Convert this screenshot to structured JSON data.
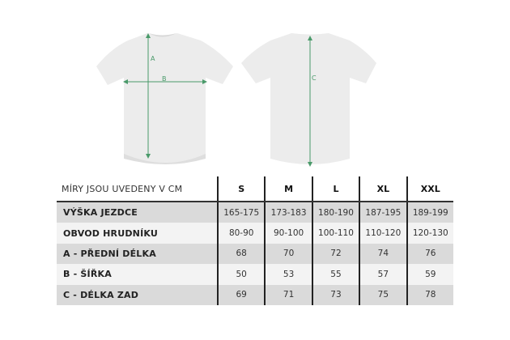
{
  "diagram": {
    "labels": {
      "a": "A",
      "b": "B",
      "c": "C"
    },
    "shirt_color": "#ececec",
    "measure_color": "#4a9a6a"
  },
  "table": {
    "caption": "MÍRY JSOU UVEDENY V CM",
    "sizes": [
      "S",
      "M",
      "L",
      "XL",
      "XXL"
    ],
    "rows": [
      {
        "label": "VÝŠKA JEZDCE",
        "values": [
          "165-175",
          "173-183",
          "180-190",
          "187-195",
          "189-199"
        ]
      },
      {
        "label": "OBVOD HRUDNÍKU",
        "values": [
          "80-90",
          "90-100",
          "100-110",
          "110-120",
          "120-130"
        ]
      },
      {
        "label": "A - PŘEDNÍ DÉLKA",
        "values": [
          "68",
          "70",
          "72",
          "74",
          "76"
        ]
      },
      {
        "label": "B - ŠÍŘKA",
        "values": [
          "50",
          "53",
          "55",
          "57",
          "59"
        ]
      },
      {
        "label": "C - DÉLKA ZAD",
        "values": [
          "69",
          "71",
          "73",
          "75",
          "78"
        ]
      }
    ]
  }
}
